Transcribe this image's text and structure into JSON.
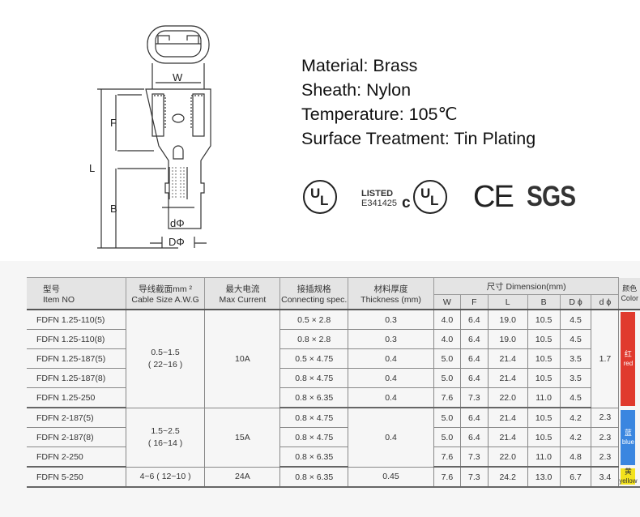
{
  "drawing": {
    "labels": {
      "w": "W",
      "f": "F",
      "l": "L",
      "b": "B",
      "d_inner": "dΦ",
      "d_outer": "DΦ"
    }
  },
  "specs": {
    "material": "Material: Brass",
    "sheath": "Sheath: Nylon",
    "temperature": "Temperature: 105℃",
    "surface": "Surface Treatment: Tin Plating"
  },
  "certifications": {
    "ul": "UL",
    "listed": "LISTED",
    "listed_number": "E341425",
    "cul_prefix": "c",
    "cul": "UL",
    "ce": "CE",
    "sgs": "SGS"
  },
  "table": {
    "headers": {
      "item_cn": "型号",
      "item": "Item NO",
      "cable_cn": "导线截面mm ²",
      "cable": "Cable Size  A.W.G",
      "current_cn": "最大电流",
      "current": "Max Current",
      "conn_cn": "接插规格",
      "conn": "Connecting spec.",
      "thick_cn": "材料厚度",
      "thick": "Thickness (mm)",
      "dimension": "尺寸 Dimension(mm)",
      "color_cn": "颜色",
      "color": "Color",
      "dims": [
        "W",
        "F",
        "L",
        "B",
        "D ϕ",
        "d ϕ"
      ]
    },
    "groups": [
      {
        "cable": "0.5~1.5",
        "awg": "( 22~16 )",
        "current": "10A",
        "d": "1.7",
        "color_hex": "#e03a2e",
        "color_cn": "红",
        "color_en": "red",
        "rows": [
          {
            "item": "FDFN 1.25-110(5)",
            "conn": "0.5 × 2.8",
            "thick": "0.3",
            "W": "4.0",
            "F": "6.4",
            "L": "19.0",
            "B": "10.5",
            "D": "4.5"
          },
          {
            "item": "FDFN 1.25-110(8)",
            "conn": "0.8 × 2.8",
            "thick": "0.3",
            "W": "4.0",
            "F": "6.4",
            "L": "19.0",
            "B": "10.5",
            "D": "4.5"
          },
          {
            "item": "FDFN 1.25-187(5)",
            "conn": "0.5 × 4.75",
            "thick": "0.4",
            "W": "5.0",
            "F": "6.4",
            "L": "21.4",
            "B": "10.5",
            "D": "3.5"
          },
          {
            "item": "FDFN 1.25-187(8)",
            "conn": "0.8 × 4.75",
            "thick": "0.4",
            "W": "5.0",
            "F": "6.4",
            "L": "21.4",
            "B": "10.5",
            "D": "3.5"
          },
          {
            "item": "FDFN 1.25-250",
            "conn": "0.8 × 6.35",
            "thick": "0.4",
            "W": "7.6",
            "F": "7.3",
            "L": "22.0",
            "B": "11.0",
            "D": "4.5"
          }
        ]
      },
      {
        "cable": "1.5~2.5",
        "awg": "( 16~14 )",
        "current": "15A",
        "thick": "0.4",
        "color_hex": "#3a86e0",
        "color_cn": "蓝",
        "color_en": "blue",
        "rows": [
          {
            "item": "FDFN 2-187(5)",
            "conn": "0.8 × 4.75",
            "W": "5.0",
            "F": "6.4",
            "L": "21.4",
            "B": "10.5",
            "D": "4.2",
            "d": "2.3"
          },
          {
            "item": "FDFN 2-187(8)",
            "conn": "0.8 × 4.75",
            "W": "5.0",
            "F": "6.4",
            "L": "21.4",
            "B": "10.5",
            "D": "4.2",
            "d": "2.3"
          },
          {
            "item": "FDFN 2-250",
            "conn": "0.8 × 6.35",
            "W": "7.6",
            "F": "7.3",
            "L": "22.0",
            "B": "11.0",
            "D": "4.8",
            "d": "2.3"
          }
        ]
      },
      {
        "cable": "4~6 ( 12~10 )",
        "current": "24A",
        "color_hex": "#f3e21c",
        "color_cn": "黄",
        "color_en": "yellow",
        "rows": [
          {
            "item": "FDFN 5-250",
            "conn": "0.8 × 6.35",
            "thick": "0.45",
            "W": "7.6",
            "F": "7.3",
            "L": "24.2",
            "B": "13.0",
            "D": "6.7",
            "d": "3.4"
          }
        ]
      }
    ]
  }
}
